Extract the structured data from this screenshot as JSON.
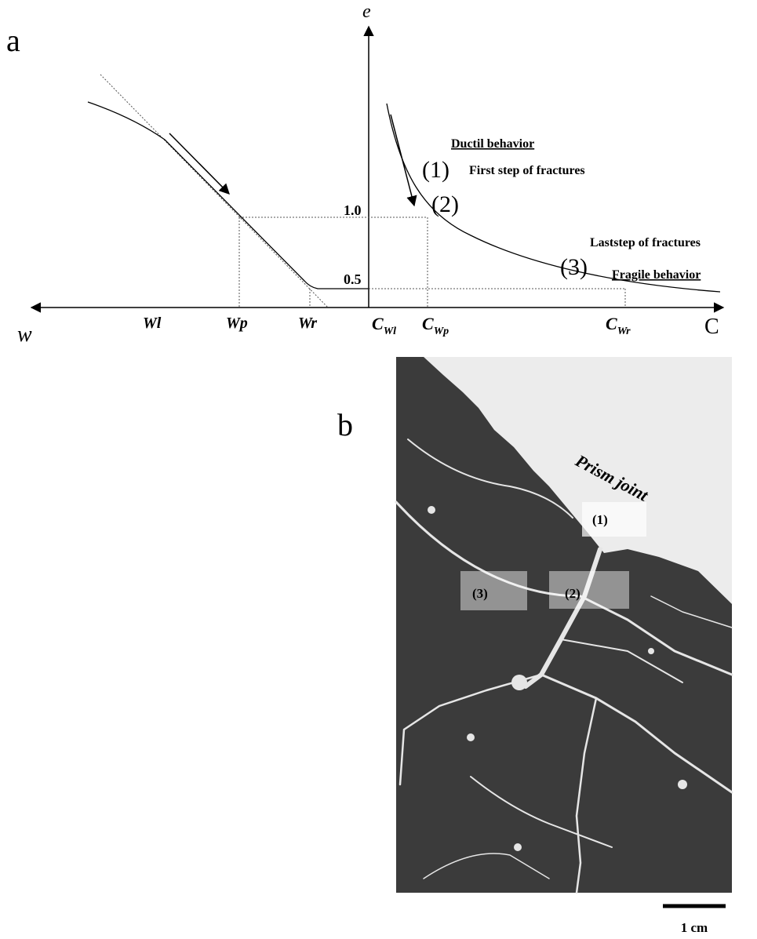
{
  "panel_a": {
    "label": "a",
    "y_axis_label": "e",
    "x_left_label": "w",
    "x_right_label": "C",
    "ductile": "Ductil behavior",
    "step1_num": "(1)",
    "step1": "First step of fractures",
    "step2_num": "(2)",
    "tick_10": "1.0",
    "tick_05": "0.5",
    "last_step": "Laststep  of fractures",
    "step3_num": "(3)",
    "fragile": "Fragile behavior",
    "w_ticks": [
      "Wl",
      "Wp",
      "Wr"
    ],
    "c_ticks": [
      {
        "main": "C",
        "sub": "Wl"
      },
      {
        "main": "C",
        "sub": "Wp"
      },
      {
        "main": "C",
        "sub": "Wr"
      }
    ]
  },
  "panel_b": {
    "label": "b",
    "prism_joint": "Prism joint",
    "markers": [
      "(1)",
      "(2)",
      "(3)"
    ],
    "scale": "1 cm"
  }
}
